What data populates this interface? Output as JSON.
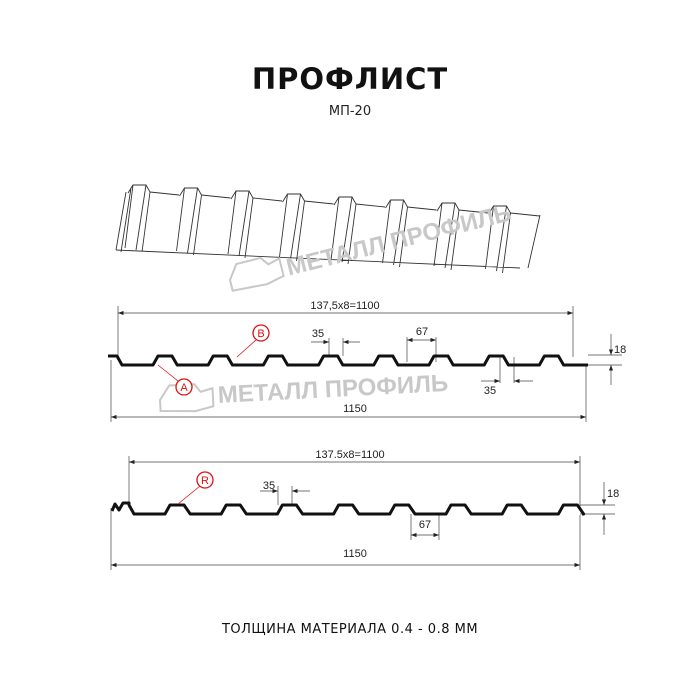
{
  "title": "ПРОФЛИСТ",
  "subtitle": "МП-20",
  "footer": "ТОЛЩИНА МАТЕРИАЛА 0.4 - 0.8 ММ",
  "watermark": "МЕТАЛЛ ПРОФИЛЬ",
  "colors": {
    "profile": "#111111",
    "marker": "#e01010",
    "watermark": "#c8c8c8"
  },
  "profile_a": {
    "pitch_label": "137,5x8=1100",
    "crest_width": "35",
    "trough_width_top": "67",
    "crest_width_bottom": "35",
    "height": "18",
    "total_width": "1150",
    "markers": [
      "B",
      "A"
    ]
  },
  "profile_b": {
    "pitch_label": "137.5x8=1100",
    "crest_width": "35",
    "trough_width": "67",
    "height": "18",
    "total_width": "1150",
    "markers": [
      "R"
    ]
  }
}
